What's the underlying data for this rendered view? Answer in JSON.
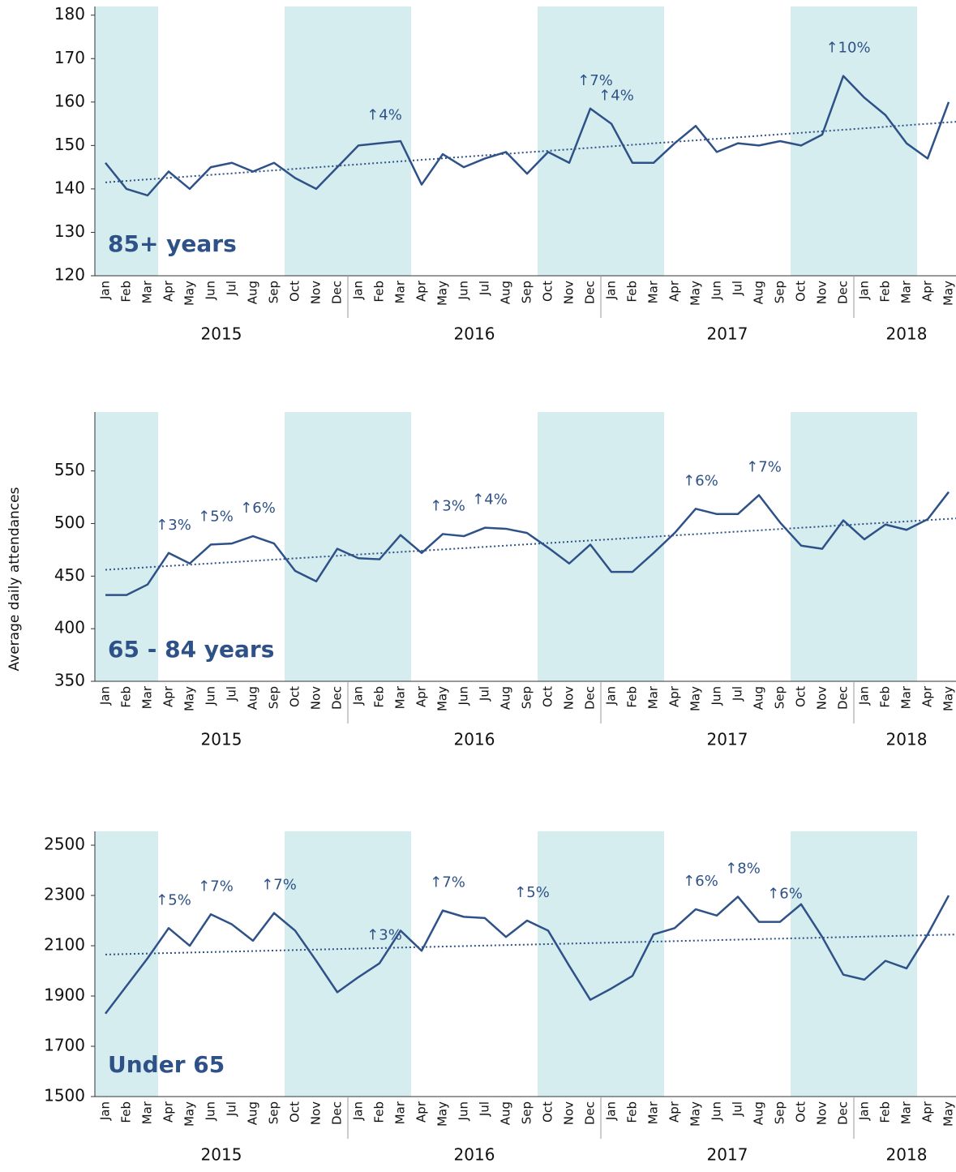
{
  "chart_data": [
    {
      "type": "line",
      "label": "85+ years",
      "color": "#2e5288",
      "groups": [
        {
          "label": "2015",
          "months": [
            "Jan",
            "Feb",
            "Mar",
            "Apr",
            "May",
            "Jun",
            "Jul",
            "Aug",
            "Sep",
            "Oct",
            "Nov",
            "Dec"
          ]
        },
        {
          "label": "2016",
          "months": [
            "Jan",
            "Feb",
            "Mar",
            "Apr",
            "May",
            "Jun",
            "Jul",
            "Aug",
            "Sep",
            "Oct",
            "Nov",
            "Dec"
          ]
        },
        {
          "label": "2017",
          "months": [
            "Jan",
            "Feb",
            "Mar",
            "Apr",
            "May",
            "Jun",
            "Jul",
            "Aug",
            "Sep",
            "Oct",
            "Nov",
            "Dec"
          ]
        },
        {
          "label": "2018",
          "months": [
            "Jan",
            "Feb",
            "Mar",
            "Apr",
            "May"
          ]
        }
      ],
      "values": [
        146,
        140,
        138.5,
        144,
        140,
        145,
        146,
        144,
        146,
        142.5,
        140,
        145,
        150,
        150.5,
        151,
        141,
        148,
        145,
        147,
        148.5,
        143.5,
        148.5,
        146,
        158.5,
        155,
        146,
        146,
        150.5,
        154.5,
        148.5,
        150.5,
        150,
        151,
        150,
        152.5,
        166,
        161,
        157,
        150.5,
        147,
        160
      ],
      "value_notes": [
        null,
        null,
        null,
        null,
        null,
        null,
        null,
        null,
        null,
        null,
        null,
        null,
        null,
        "↑4%",
        null,
        null,
        null,
        null,
        null,
        null,
        null,
        null,
        null,
        "↑7%",
        "↑4%",
        null,
        null,
        null,
        null,
        null,
        null,
        null,
        null,
        null,
        null,
        "↑10%",
        null,
        null,
        null,
        null,
        null
      ],
      "trendline": [
        141.5,
        155.5
      ],
      "ylim": [
        120,
        182
      ],
      "yticks": [
        120,
        130,
        140,
        150,
        160,
        170,
        180
      ]
    },
    {
      "type": "line",
      "label": "65 - 84 years",
      "color": "#2e5288",
      "ylabel": "Average daily attendances",
      "groups": [
        {
          "label": "2015",
          "months": [
            "Jan",
            "Feb",
            "Mar",
            "Apr",
            "May",
            "Jun",
            "Jul",
            "Aug",
            "Sep",
            "Oct",
            "Nov",
            "Dec"
          ]
        },
        {
          "label": "2016",
          "months": [
            "Jan",
            "Feb",
            "Mar",
            "Apr",
            "May",
            "Jun",
            "Jul",
            "Aug",
            "Sep",
            "Oct",
            "Nov",
            "Dec"
          ]
        },
        {
          "label": "2017",
          "months": [
            "Jan",
            "Feb",
            "Mar",
            "Apr",
            "May",
            "Jun",
            "Jul",
            "Aug",
            "Sep",
            "Oct",
            "Nov",
            "Dec"
          ]
        },
        {
          "label": "2018",
          "months": [
            "Jan",
            "Feb",
            "Mar",
            "Apr",
            "May"
          ]
        }
      ],
      "values": [
        432,
        432,
        442,
        472,
        462,
        480,
        481,
        488,
        481,
        455,
        445,
        476,
        467,
        466,
        489,
        472,
        490,
        488,
        496,
        495,
        491,
        477,
        462,
        480,
        454,
        454,
        472,
        491,
        514,
        509,
        509,
        527,
        501,
        479,
        476,
        503,
        485,
        499,
        494,
        504,
        530
      ],
      "value_notes": [
        null,
        null,
        null,
        "↑3%",
        null,
        "↑5%",
        null,
        "↑6%",
        null,
        null,
        null,
        null,
        null,
        null,
        null,
        null,
        "↑3%",
        null,
        "↑4%",
        null,
        null,
        null,
        null,
        null,
        null,
        null,
        null,
        null,
        "↑6%",
        null,
        null,
        "↑7%",
        null,
        null,
        null,
        null,
        null,
        null,
        null,
        null,
        null
      ],
      "trendline": [
        456,
        505
      ],
      "ylim": [
        350,
        606
      ],
      "yticks": [
        350,
        400,
        450,
        500,
        550
      ]
    },
    {
      "type": "line",
      "label": "Under 65",
      "color": "#2e5288",
      "groups": [
        {
          "label": "2015",
          "months": [
            "Jan",
            "Feb",
            "Mar",
            "Apr",
            "May",
            "Jun",
            "Jul",
            "Aug",
            "Sep",
            "Oct",
            "Nov",
            "Dec"
          ]
        },
        {
          "label": "2016",
          "months": [
            "Jan",
            "Feb",
            "Mar",
            "Apr",
            "May",
            "Jun",
            "Jul",
            "Aug",
            "Sep",
            "Oct",
            "Nov",
            "Dec"
          ]
        },
        {
          "label": "2017",
          "months": [
            "Jan",
            "Feb",
            "Mar",
            "Apr",
            "May",
            "Jun",
            "Jul",
            "Aug",
            "Sep",
            "Oct",
            "Nov",
            "Dec"
          ]
        },
        {
          "label": "2018",
          "months": [
            "Jan",
            "Feb",
            "Mar",
            "Apr",
            "May"
          ]
        }
      ],
      "values": [
        1830,
        1940,
        2050,
        2170,
        2100,
        2225,
        2185,
        2120,
        2230,
        2160,
        2040,
        1915,
        1975,
        2030,
        2160,
        2080,
        2240,
        2215,
        2210,
        2135,
        2200,
        2160,
        2020,
        1885,
        1930,
        1980,
        2145,
        2170,
        2245,
        2220,
        2295,
        2195,
        2195,
        2265,
        2135,
        1985,
        1965,
        2040,
        2010,
        2145,
        2300
      ],
      "value_notes": [
        null,
        null,
        null,
        "↑5%",
        null,
        "↑7%",
        null,
        null,
        "↑7%",
        null,
        null,
        null,
        null,
        "↑3%",
        null,
        null,
        "↑7%",
        null,
        null,
        null,
        "↑5%",
        null,
        null,
        null,
        null,
        null,
        null,
        null,
        "↑6%",
        null,
        "↑8%",
        null,
        "↑6%",
        null,
        null,
        null,
        null,
        null,
        null,
        null,
        null
      ],
      "trendline": [
        2065,
        2145
      ],
      "ylim": [
        1500,
        2555
      ],
      "yticks": [
        1500,
        1700,
        1900,
        2100,
        2300,
        2500
      ]
    }
  ]
}
